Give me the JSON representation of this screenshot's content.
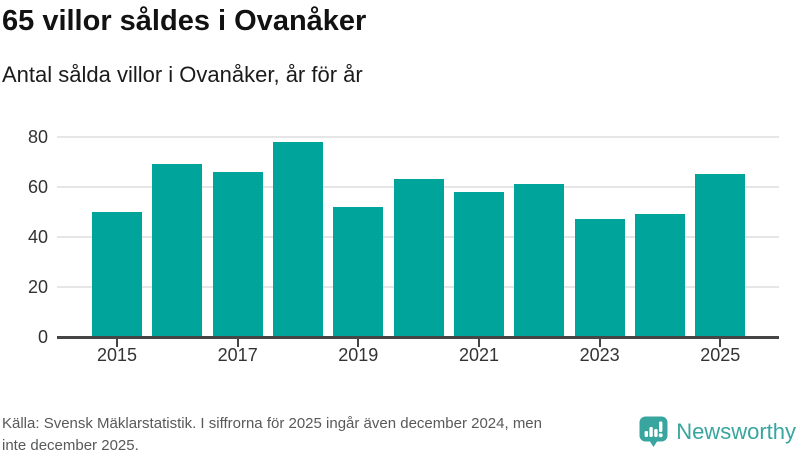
{
  "chart_data": {
    "type": "bar",
    "title": "65 villor såldes i Ovanåker",
    "subtitle": "Antal sålda villor i Ovanåker, år för år",
    "categories": [
      2015,
      2016,
      2017,
      2018,
      2019,
      2020,
      2021,
      2022,
      2023,
      2024,
      2025
    ],
    "values": [
      50,
      69,
      66,
      78,
      52,
      63,
      58,
      61,
      47,
      49,
      65
    ],
    "xlabel": "",
    "ylabel": "",
    "ylim": [
      0,
      80
    ],
    "yticks": [
      0,
      20,
      40,
      60,
      80
    ],
    "xtick_labels": [
      "2015",
      "2017",
      "2019",
      "2021",
      "2023",
      "2025"
    ],
    "grid": true,
    "legend": false,
    "bar_color": "#00a49a"
  },
  "footer": {
    "lines": [
      "Källa: Svensk Mäklarstatistik. I siffrorna för 2025 ingår även december 2024, men",
      "inte december 2025."
    ]
  },
  "branding": {
    "logo_text": "Newsworthy",
    "color": "#38a59e"
  }
}
